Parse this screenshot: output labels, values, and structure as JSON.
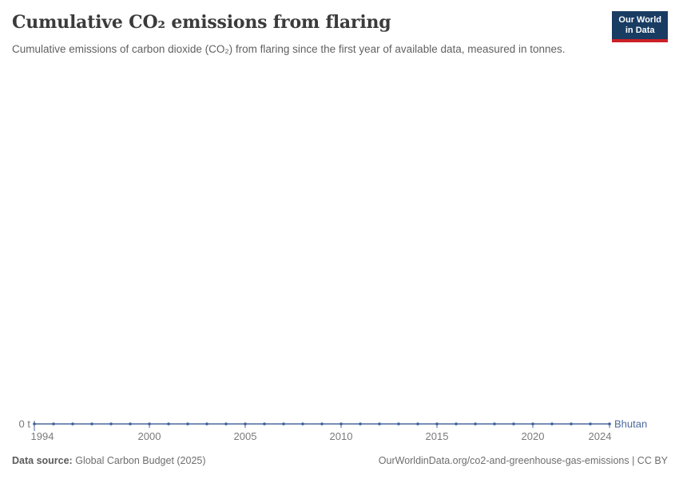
{
  "header": {
    "title": "Cumulative CO₂ emissions from flaring",
    "subtitle": "Cumulative emissions of carbon dioxide (CO₂) from flaring since the first year of available data, measured in tonnes.",
    "logo": {
      "line1": "Our World",
      "line2": "in Data"
    }
  },
  "chart_data": {
    "type": "line",
    "title": "Cumulative CO₂ emissions from flaring",
    "xlabel": "",
    "ylabel": "tonnes",
    "x": [
      1994,
      1995,
      1996,
      1997,
      1998,
      1999,
      2000,
      2001,
      2002,
      2003,
      2004,
      2005,
      2006,
      2007,
      2008,
      2009,
      2010,
      2011,
      2012,
      2013,
      2014,
      2015,
      2016,
      2017,
      2018,
      2019,
      2020,
      2021,
      2022,
      2023,
      2024
    ],
    "series": [
      {
        "name": "Bhutan",
        "color": "#4c6a9c",
        "marker_color": "#3d619b",
        "values": [
          0,
          0,
          0,
          0,
          0,
          0,
          0,
          0,
          0,
          0,
          0,
          0,
          0,
          0,
          0,
          0,
          0,
          0,
          0,
          0,
          0,
          0,
          0,
          0,
          0,
          0,
          0,
          0,
          0,
          0,
          0
        ]
      }
    ],
    "x_tick_labels": [
      1994,
      2000,
      2005,
      2010,
      2015,
      2020,
      2024
    ],
    "y_zero_label": "0 t",
    "ylim": [
      0,
      0
    ],
    "grid": false,
    "legend": "end-of-line-label",
    "axis_text_color": "#7a7a7a"
  },
  "footer": {
    "source_label": "Data source:",
    "source_value": "Global Carbon Budget (2025)",
    "link_text": "OurWorldinData.org/co2-and-greenhouse-gas-emissions | CC BY"
  }
}
